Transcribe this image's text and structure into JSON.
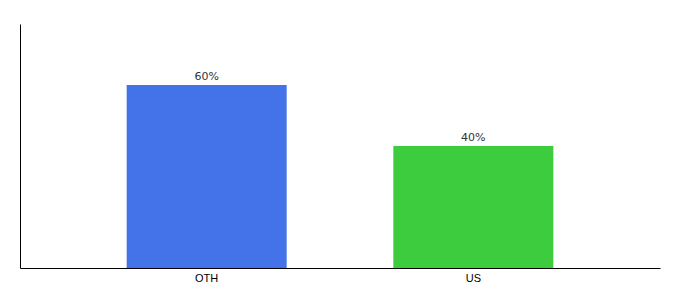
{
  "chart_data": {
    "type": "bar",
    "categories": [
      "OTH",
      "US"
    ],
    "values": [
      60,
      40
    ],
    "value_labels": [
      "60%",
      "40%"
    ],
    "colors": [
      "#4472e8",
      "#3dcc3d"
    ],
    "ylim": [
      0,
      80
    ],
    "data_labels": true,
    "tick_labels": "x"
  }
}
